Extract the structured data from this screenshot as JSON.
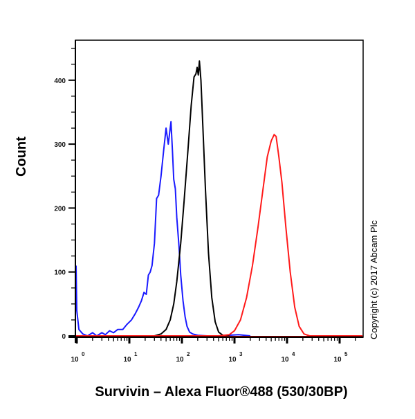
{
  "chart_data": {
    "type": "line",
    "subtype": "flow-cytometry-histogram-overlay",
    "title": "",
    "xlabel": "Survivin – Alexa Fluor®488 (530/30BP)",
    "ylabel": "Count",
    "xscale": "log",
    "xlim": [
      0.93,
      280000
    ],
    "ylim": [
      0,
      470
    ],
    "x_ticks": [
      1,
      10,
      100,
      1000,
      10000,
      100000
    ],
    "x_tick_labels": [
      {
        "base": "10",
        "exp": "0"
      },
      {
        "base": "10",
        "exp": "1"
      },
      {
        "base": "10",
        "exp": "2"
      },
      {
        "base": "10",
        "exp": "3"
      },
      {
        "base": "10",
        "exp": "4"
      },
      {
        "base": "10",
        "exp": "5"
      }
    ],
    "y_ticks": [
      0,
      100,
      200,
      300,
      400
    ],
    "y_minor_step": 25,
    "grid": false,
    "legend": null,
    "annotation": "Copyright (c) 2017 Abcam Plc",
    "series": [
      {
        "name": "blue",
        "color": "#1a1aff",
        "x": [
          0.95,
          1.0,
          1.1,
          1.3,
          1.6,
          2.0,
          2.4,
          3.0,
          3.5,
          4.2,
          5.0,
          6.0,
          7.5,
          9.0,
          11,
          13,
          15,
          17,
          19,
          21,
          23,
          25,
          27,
          30,
          33,
          36,
          40,
          45,
          50,
          55,
          58,
          62,
          66,
          70,
          75,
          80,
          88,
          95,
          105,
          115,
          125,
          140,
          160,
          200,
          300,
          500,
          1200,
          2000
        ],
        "y": [
          110,
          40,
          10,
          3,
          0,
          5,
          0,
          5,
          2,
          8,
          5,
          10,
          10,
          18,
          25,
          35,
          45,
          55,
          68,
          65,
          95,
          100,
          110,
          145,
          215,
          220,
          250,
          290,
          325,
          300,
          315,
          335,
          290,
          245,
          230,
          185,
          140,
          95,
          55,
          30,
          15,
          6,
          3,
          1,
          0,
          0,
          2,
          0
        ]
      },
      {
        "name": "black",
        "color": "#000000",
        "x": [
          30,
          40,
          50,
          60,
          70,
          80,
          95,
          110,
          130,
          150,
          170,
          185,
          195,
          205,
          215,
          230,
          250,
          280,
          320,
          370,
          430,
          500,
          600,
          800
        ],
        "y": [
          0,
          3,
          10,
          25,
          50,
          85,
          145,
          210,
          290,
          360,
          405,
          410,
          420,
          408,
          430,
          400,
          330,
          230,
          130,
          60,
          22,
          6,
          1,
          0
        ]
      },
      {
        "name": "red",
        "color": "#ff1a1a",
        "x": [
          0.93,
          500,
          800,
          1000,
          1300,
          1700,
          2200,
          2800,
          3500,
          4200,
          5000,
          5700,
          6200,
          7000,
          8000,
          9500,
          11500,
          14000,
          17000,
          21000,
          27000,
          280000
        ],
        "y": [
          0,
          0,
          2,
          8,
          25,
          60,
          110,
          170,
          230,
          280,
          305,
          315,
          312,
          280,
          240,
          170,
          100,
          45,
          15,
          3,
          0,
          0
        ]
      }
    ]
  }
}
